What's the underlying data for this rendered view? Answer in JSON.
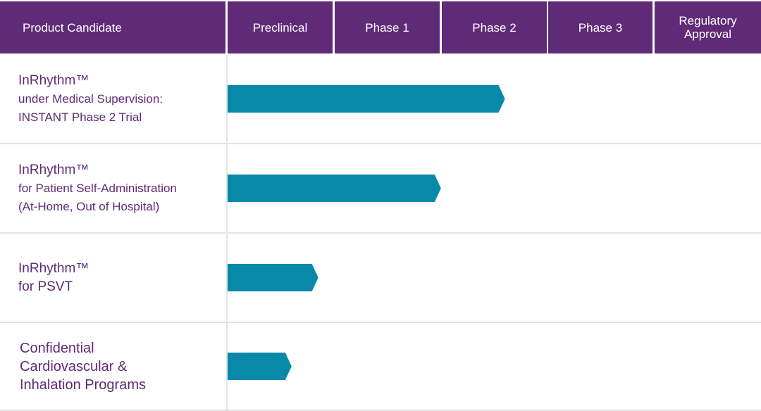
{
  "header": {
    "product_col": "Product Candidate",
    "stages": [
      "Preclinical",
      "Phase 1",
      "Phase 2",
      "Phase 3",
      "Regulatory\nApproval"
    ]
  },
  "colors": {
    "header_bg": "#5f2a77",
    "header_text": "#ffffff",
    "label_text": "#5f2a77",
    "bar": "#0889a9",
    "grid": "#e2e2e7"
  },
  "rows": [
    {
      "title": "InRhythm™",
      "line2": "under Medical Supervision:",
      "line3": "INSTANT Phase 2 Trial"
    },
    {
      "title": "InRhythm™",
      "line2": "for Patient Self-Administration",
      "line3": "(At-Home, Out of Hospital)"
    },
    {
      "title": "InRhythm™",
      "line2": "for PSVT"
    },
    {
      "line1": "Confidential",
      "line2": "Cardiovascular &",
      "line3": "Inhalation Programs"
    }
  ],
  "chart_data": {
    "type": "bar",
    "orientation": "horizontal",
    "categories": [
      "InRhythm™ under Medical Supervision: INSTANT Phase 2 Trial",
      "InRhythm™ for Patient Self-Administration (At-Home, Out of Hospital)",
      "InRhythm™ for PSVT",
      "Confidential Cardiovascular & Inhalation Programs"
    ],
    "stage_axis": [
      "Preclinical",
      "Phase 1",
      "Phase 2",
      "Phase 3",
      "Regulatory Approval"
    ],
    "values": [
      2.6,
      2.0,
      0.85,
      0.6
    ],
    "xlim": [
      0,
      5
    ],
    "legend": "none",
    "grid": true
  }
}
